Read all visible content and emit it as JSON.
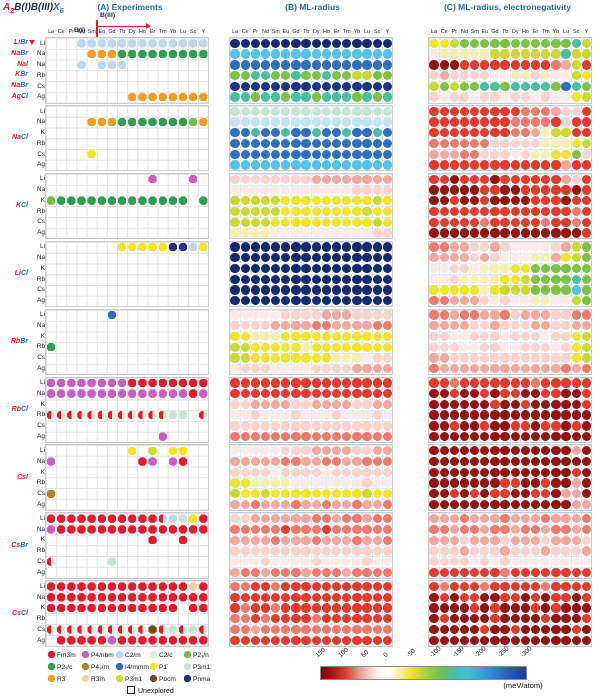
{
  "header": {
    "title": {
      "prefix": "A",
      "prefix_sub": "2",
      "middle": "B(I)B(III)",
      "suffix": "X",
      "suffix_sub": "6"
    },
    "axis": {
      "h": "B(III)",
      "v": "B(I)"
    },
    "panel_labels": [
      "(A) Experiments",
      "(B) ML-radius",
      "(C) ML-radius, electronegativity"
    ]
  },
  "chart_data": {
    "type": "heatmap",
    "columns": [
      "La",
      "Ce",
      "Pr",
      "Nd",
      "Sm",
      "Eu",
      "Gd",
      "Tb",
      "Dy",
      "Ho",
      "Er",
      "Tm",
      "Yb",
      "Lu",
      "Sc",
      "Y"
    ],
    "groups": {
      "block1": {
        "systems": [
          [
            "Li",
            "Br"
          ],
          [
            "Na",
            "Br"
          ],
          [
            "Na",
            "I"
          ],
          [
            "K",
            "Br"
          ],
          [
            "Na",
            "Br"
          ],
          [
            "Ag",
            "Cl"
          ]
        ],
        "rows": [
          "Li",
          "Na",
          "Na",
          "Rb",
          "Cs",
          "Ag"
        ]
      },
      "blocks": [
        [
          "Na",
          "Cl"
        ],
        [
          "K",
          "Cl"
        ],
        [
          "Li",
          "Cl"
        ],
        [
          "Rb",
          "Br"
        ],
        [
          "Rb",
          "Cl"
        ],
        [
          "Cs",
          "I"
        ],
        [
          "Cs",
          "Br"
        ],
        [
          "Cs",
          "Cl"
        ]
      ],
      "rows": [
        "Li",
        "Na",
        "K",
        "Rb",
        "Cs",
        "Ag"
      ]
    },
    "palette": {
      "R": "#e8192c",
      "M": "#c95fc6",
      "C": "#b9d9f0",
      "c": "#d9eee4",
      "n": "#6cbf4a",
      "G": "#2f9e4e",
      "q": "#a8881f",
      "I": "#2f6db8",
      "Y": "#f3e517",
      "p": "#c6e6d5",
      "O": "#f59d1e",
      "o": "#f8cfa0",
      "g": "#ccde2b",
      "B": "#7a4a24",
      "N": "#203380",
      "a": "#931511",
      "r": "#e23a2c",
      "s": "#ed7a6c",
      "k": "#f3a89e",
      "l": "#f9d4cf",
      "w": "#fcebe8",
      "e": "#f6f1b0",
      "y": "#efe52e",
      "v": "#cbd930",
      "f": "#7dc242",
      "t": "#49bfa2",
      "u": "#55c3e6",
      "d": "#2f6fbd",
      "D": "#16286e",
      "x": "#c3e4ee",
      "H": {
        "split": [
          "#e8192c",
          "#d9eee4"
        ]
      },
      "h": {
        "split": [
          "#e8192c",
          "#b9d9f0"
        ]
      }
    },
    "grids": {
      "A": [
        [
          "...CCCCCCCCCCCCC",
          "....OOOGGGGGGGGG",
          "...C.CCC........",
          "................",
          "................",
          "........OOOOOOOO"
        ],
        [
          "................",
          "....OOOGGGGGGGnO",
          "................",
          "................",
          "....Y...........",
          "................"
        ],
        [
          "..........M...M.",
          "................",
          "nGGGGGGGGGGGGG.G",
          "................",
          "................",
          "................"
        ],
        [
          ".......YYYYYNNCY",
          "................",
          "................",
          "................",
          "................",
          "................"
        ],
        [
          "......I.........",
          "................",
          "................",
          "G...............",
          "................",
          "................"
        ],
        [
          "MMMMMMMMRRRRRRRR",
          "MMMMMMMMMMMMMMRM",
          "................",
          "HHHHHHHHHHHHpp.H",
          "................",
          "...........M...."
        ],
        [
          "........Y.g.YY..",
          "M........RM.MR..",
          "................",
          "................",
          "q...............",
          "................"
        ],
        [
          "RRRRRRRRRRRhCpYR",
          "MRRRRRRRRRRRRRRR",
          "..........R..R..",
          "................",
          "H.....p.........",
          "................"
        ],
        [
          "RRRRRRRRRRRRRRoR",
          "RRRRRRRRRRRRRRRR",
          "RRRRRRRRRRRRR.RR",
          "................",
          "HHHHHHHHHHBHpHpH",
          ".RRRRRMRRRRRRRRR"
        ]
      ],
      "B": [
        [
          "DDDDDDDDDDDDDDDD",
          "uuuuuuuuuuuuuuuu",
          "dddddddddddddddd",
          "ffttfftfftffvvff",
          "NNNNNNNNNNNNNNNN",
          "ttfttfttftttftft"
        ],
        [
          "pppppppppppppppp",
          "xxxxxxxxxxxxxxxx",
          "ddtddtddtddtddtd",
          "dddddddddddddddd",
          "dddddddddddddddd",
          "uuuuuuuuuuuuuuuu"
        ],
        [
          "llllllllkkkkkkkk",
          "wwwwwwwwwwwwllll",
          "vvvvvyyyyyyyyyvy",
          "vvvvvyyyyyyyyvyy",
          "vvvvyyyyyyyyyyvy",
          "eeeewwwwwwwwwwll"
        ],
        [
          "DDDDDDDDDDDDDDDD",
          "DDDDDDDDDDDDDDDD",
          "DDDDDDDDDDDDDDDD",
          "DDDDDDDDDDDDDDDD",
          "DDDDDDDDDDDDDDDD",
          "DDDDDDDDDDDDDDDD"
        ],
        [
          "wwwwwllllkkkllll",
          "llllkkkksskkkkss",
          "yyeeeyyyyyyyyyyy",
          "vvyyyyyeyyyyyyyy",
          "vvyyyyyyyyeeewll",
          "wlllwwwwllllkkkk"
        ],
        [
          "rrrrrrrrrrrrrrrr",
          "rrrrrrrrrrrrrrrr",
          "llkkkkllkkkkllkk",
          "wwlwwwlwwwlwwwlw",
          "llllllllllllllll",
          "ssssssssssssssss"
        ],
        [
          "wwwwwlllkkkkllkk",
          "kkkkksskksskksss",
          "llllwllllwllllll",
          "yyeeeewwwwwwwlww",
          "vyyvyyyyyyyyyvyy",
          "kkskkkskkskkskks"
        ],
        [
          "llkkkkkkssksskss",
          "sssssrsssrssssss",
          "kkkkskkkskkkskks",
          "llllllllllllllll",
          "wwwlwwwwlwwwwlww",
          "ksskssskssskssss"
        ],
        [
          "ssrrsrrrrrrrrrrr",
          "rrrrrrrrrrrrrrrr",
          "rsrrsrrrrrrrrrrr",
          "ssrsrrrrsrrrrrrr",
          "ssksssssssssssss",
          "rrrrrrrrrrrrrrrr"
        ]
      ],
      "C": [
        [
          "yyvffffffffffftv",
          "weeeeevvvvvvvtvv",
          "aaarrrrrrrrrskvr",
          "lkllllwweelewwvy",
          "vfvffttfttttfdtf",
          "lwllwllwllwlwwyv"
        ],
        [
          "rrrrrrrrrssskllr",
          "rrrrrrrrssssrlrr",
          "rrrrrrrrsskevvrr",
          "ssssssllllleeeyv",
          "kkksslllwleeyyfl",
          "rrrrrrrrrrrrrkrr"
        ],
        [
          "rrarrrarrrrrrklr",
          "aaaaarraarrrrrar",
          "aaraaraaaarrrarr",
          "rrrrrrrrrrrrrrsr",
          "rrrrrsrrrrrsrrsr",
          "aaaaaaaaaaaaaaar"
        ],
        [
          "sskkllklwwwwlkvf",
          "kkkklklwwweekyvf",
          "wwllweeeyyffffff",
          "wwleeeeyyvfffftf",
          "yyyyyeyvvvffffuf",
          "sskkklwlwweewwvf"
        ],
        [
          "ssksskkslkkkllss",
          "kkkkllklllkkllkk",
          "llwwlllwlllwllyv",
          "lllwwllwwlllwlyv",
          "kkllllllllllllyv",
          "skkkkkkkkkkkksks"
        ],
        [
          "rrsrrrrrrrsrrrrr",
          "aaraararraarraar",
          "aaaaaaraaraaaaar",
          "aaaaaaaaaaaaaaaa",
          "aaraaraarrarrara",
          "aaaaaaaaaaaaaaaa"
        ],
        [
          "aaaaaaaaaaaaaaka",
          "aaaaaaaaaaaaaaaa",
          "aaaaaaaaaaaaaara",
          "aaaaaaarraaraaka",
          "aarararraarrakka",
          "aaaaaaaaaaaaaakk"
        ],
        [
          "kkkskkkskkkskkks",
          "ssksskssksskssks",
          "kkklkkklkkklkkkl",
          "lllklllklllklllk",
          "llllwlwlwwwwwwww",
          "rrrrrrrsrrrrrrrr"
        ],
        [
          "rsrrrsrrrrrsrrrr",
          "ararraarrararrar",
          "aaaararaaararaaa",
          "araaaaraaaaraaar",
          "aaaaaraaraaaaara",
          "aaaaaaaaaaaaaaaa"
        ]
      ]
    },
    "legend": {
      "items": [
        {
          "label": "Fm3̄m",
          "key": "R"
        },
        {
          "label": "P4/nbm",
          "key": "M"
        },
        {
          "label": "C2/m",
          "key": "C"
        },
        {
          "label": "C2/c",
          "key": "c"
        },
        {
          "label": "P2₁/n",
          "key": "n"
        },
        {
          "label": "P2₁/c",
          "key": "G"
        },
        {
          "label": "P4₂/m",
          "key": "q"
        },
        {
          "label": "I4/mmm",
          "key": "I"
        },
        {
          "label": "P1̄",
          "key": "Y"
        },
        {
          "label": "P3m1",
          "key": "p"
        },
        {
          "label": "R3̄",
          "key": "O"
        },
        {
          "label": "R3̄m",
          "key": "o"
        },
        {
          "label": "P3̄m1",
          "key": "g"
        },
        {
          "label": "Pbcm",
          "key": "B"
        },
        {
          "label": "Pnma",
          "key": "N"
        }
      ],
      "unexplored": "Unexplored"
    },
    "colorbar": {
      "ticks": [
        "150",
        "100",
        "50",
        "0",
        "-50",
        "-100",
        "-150",
        "-200",
        "-250",
        "-300"
      ],
      "label": "(meV/atom)",
      "stops": [
        [
          0,
          "#7a0403"
        ],
        [
          6,
          "#b21218"
        ],
        [
          12,
          "#e23a2c"
        ],
        [
          20,
          "#f5a79c"
        ],
        [
          27,
          "#fdf0ee"
        ],
        [
          33,
          "#ffffff"
        ],
        [
          38,
          "#f8f3a6"
        ],
        [
          44,
          "#efe52e"
        ],
        [
          52,
          "#9fd038"
        ],
        [
          58,
          "#6cc355"
        ],
        [
          65,
          "#3fc2a0"
        ],
        [
          72,
          "#41c1d8"
        ],
        [
          80,
          "#3498dc"
        ],
        [
          90,
          "#2766c2"
        ],
        [
          100,
          "#1a3a9c"
        ]
      ]
    }
  }
}
